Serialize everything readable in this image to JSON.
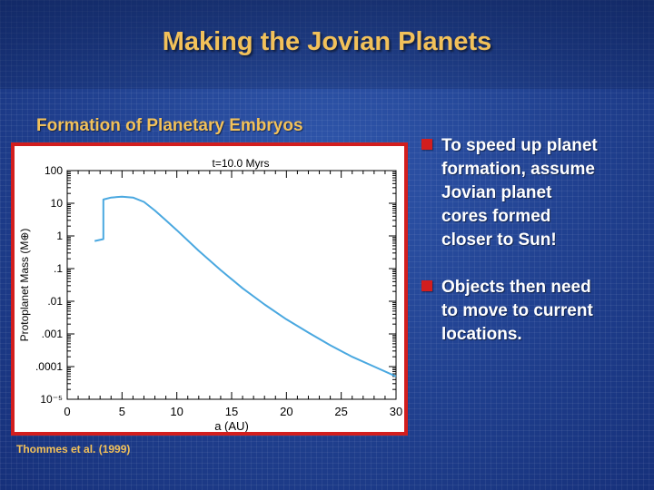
{
  "slide": {
    "title": "Making the Jovian Planets",
    "chart_heading": "Formation of Planetary Embryos",
    "caption": "Thommes et al. (1999)",
    "colors": {
      "title": "#f2c15a",
      "accent": "#d21e1e",
      "curve": "#4aa8e0",
      "background": "#234493"
    }
  },
  "bullets": [
    {
      "icon": "square-bullet-icon",
      "text": "To speed up planet\nformation, assume\nJovian planet\ncores formed\ncloser to Sun!"
    },
    {
      "icon": "square-bullet-icon",
      "text": "Objects then need\nto move to current\nlocations."
    }
  ],
  "chart_data": {
    "type": "line",
    "title": "t=10.0 Myrs",
    "xlabel": "a (AU)",
    "ylabel": "Protoplanet Mass (M⊕)",
    "xlim": [
      0,
      30
    ],
    "ylim": [
      1e-05,
      100
    ],
    "yscale": "log",
    "grid": false,
    "xticks": [
      0,
      5,
      10,
      15,
      20,
      25,
      30
    ],
    "xtick_labels": [
      "0",
      "5",
      "10",
      "15",
      "20",
      "25",
      "30"
    ],
    "yticks": [
      100,
      10,
      1,
      0.1,
      0.01,
      0.001,
      0.0001,
      1e-05
    ],
    "ytick_labels": [
      "100",
      "10",
      "1",
      ".1",
      ".01",
      ".001",
      ".0001",
      "10⁻⁵"
    ],
    "series": [
      {
        "x": [
          2.5,
          3.3,
          3.3,
          4.0,
          5.0,
          6.0,
          7.0,
          8.0,
          9.0,
          10.0,
          12.0,
          14.0,
          16.0,
          18.0,
          20.0,
          22.0,
          24.0,
          26.0,
          28.0,
          30.0
        ],
        "y": [
          0.7,
          0.8,
          13,
          15,
          16,
          15,
          11,
          6,
          3,
          1.5,
          0.35,
          0.09,
          0.025,
          0.008,
          0.0028,
          0.0011,
          0.00045,
          0.0002,
          0.0001,
          5e-05
        ]
      }
    ]
  }
}
